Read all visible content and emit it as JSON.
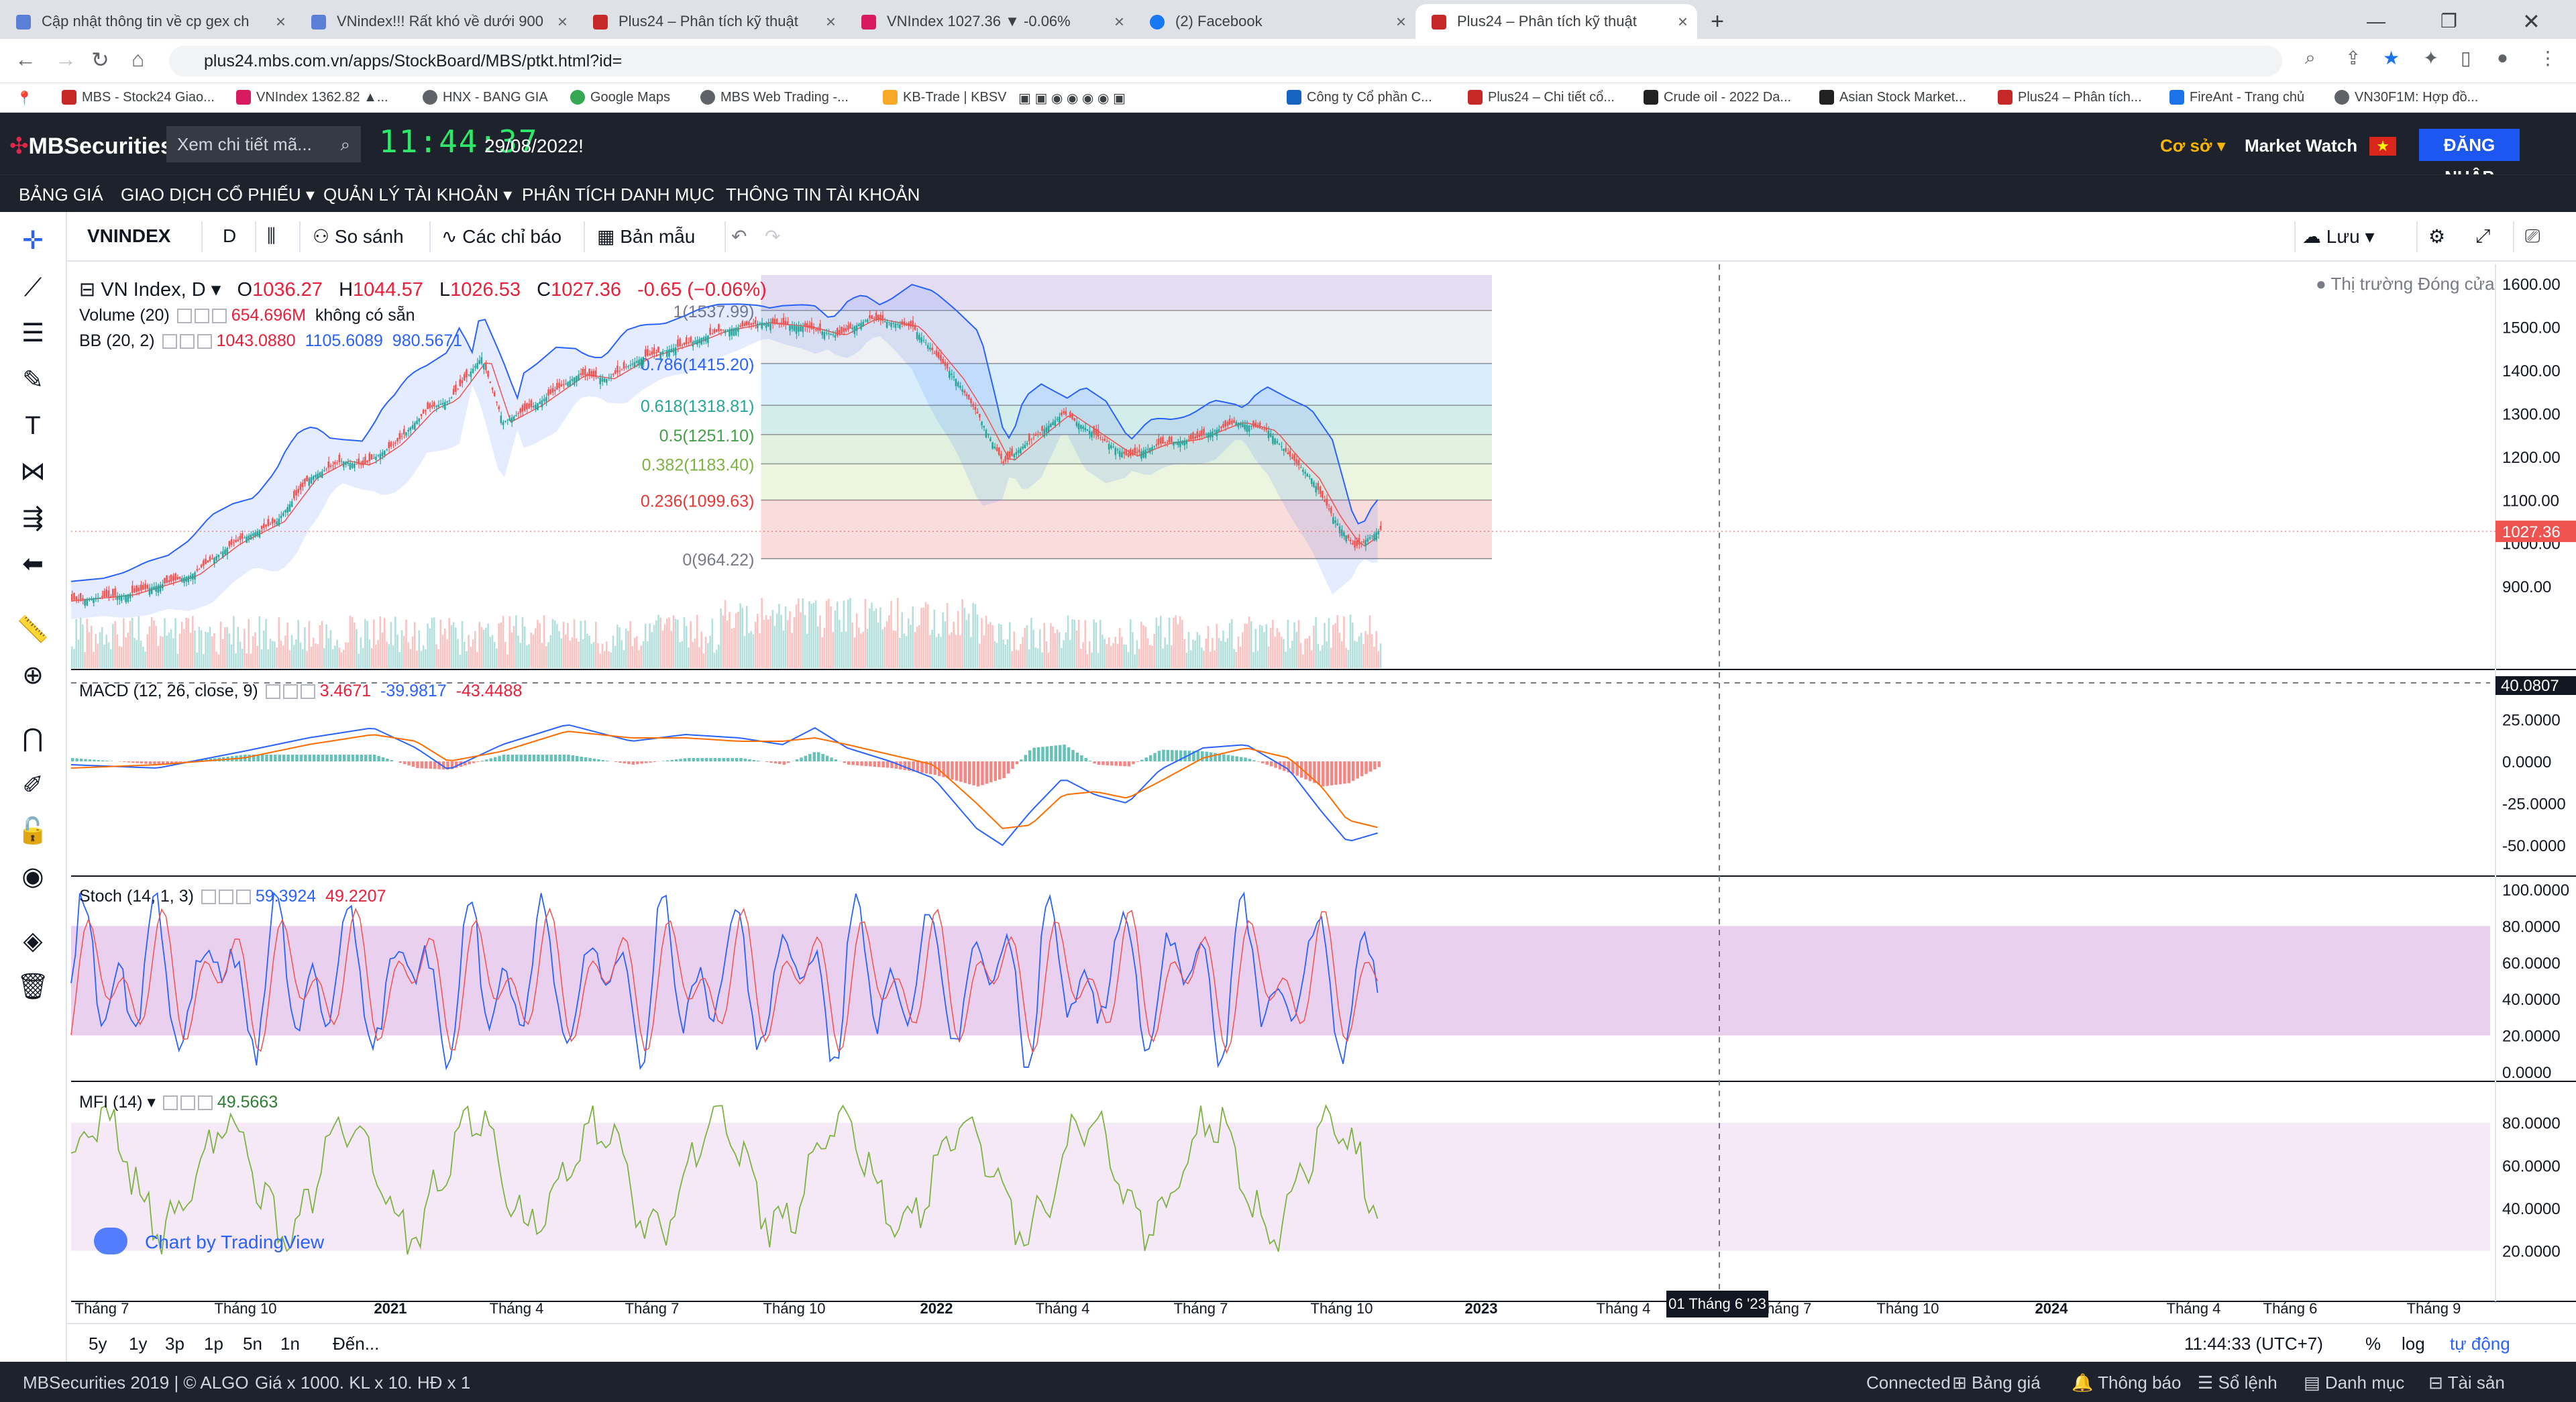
{
  "browser": {
    "tabs": [
      {
        "label": "Cập nhật thông tin về cp gex ch"
      },
      {
        "label": "VNindex!!! Rất khó về dưới 900"
      },
      {
        "label": "Plus24 – Phân tích kỹ thuật"
      },
      {
        "label": "VNIndex 1027.36 ▼ -0.06%"
      },
      {
        "label": "(2) Facebook"
      },
      {
        "label": "Plus24 – Phân tích kỹ thuật"
      }
    ],
    "url": "plus24.mbs.com.vn/apps/StockBoard/MBS/ptkt.html?id=",
    "bookmarks": [
      "MBS - Stock24 Giao...",
      "VNIndex 1362.82 ▲...",
      "HNX - BANG GIA",
      "Google Maps",
      "MBS Web Trading -...",
      "KB-Trade | KBSV",
      "Công ty Cổ phần C...",
      "Plus24 – Chi tiết cổ...",
      "Crude oil - 2022 Da...",
      "Asian Stock Market...",
      "Plus24 – Phân tích...",
      "FireAnt - Trang chủ",
      "VN30F1M: Hợp đồ..."
    ]
  },
  "header": {
    "logo": "MBSecurities",
    "search_placeholder": "Xem chi tiết mã...",
    "clock": "11:44:37",
    "date": "29/08/2022!",
    "market": "Cơ sở",
    "market_watch": "Market Watch",
    "login": "ĐĂNG NHẬP"
  },
  "menu": [
    "BẢNG GIÁ",
    "GIAO DỊCH CỔ PHIẾU",
    "QUẢN LÝ TÀI KHOẢN",
    "PHÂN TÍCH DANH MỤC",
    "THÔNG TIN TÀI KHOẢN"
  ],
  "toolbar": {
    "symbol": "VNINDEX",
    "interval": "D",
    "compare": "So sánh",
    "indicators": "Các chỉ báo",
    "templates": "Bản mẫu",
    "save": "Lưu"
  },
  "legend": {
    "title": "VN Index, D",
    "o_label": "O",
    "o": "1036.27",
    "h_label": "H",
    "h": "1044.57",
    "l_label": "L",
    "l": "1026.53",
    "c_label": "C",
    "c": "1027.36",
    "chg": "-0.65 (−0.06%)",
    "volume_label": "Volume (20)",
    "volume_value": "654.696M",
    "volume_extra": "không có sẵn",
    "bb_label": "BB (20, 2)",
    "bb_values": [
      "1043.0880",
      "1105.6089",
      "980.5671"
    ],
    "macd_label": "MACD (12, 26, close, 9)",
    "macd_values": [
      "3.4671",
      "-39.9817",
      "-43.4488"
    ],
    "stoch_label": "Stoch (14, 1, 3)",
    "stoch_values": [
      "59.3924",
      "49.2207"
    ],
    "mfi_label": "MFI (14)",
    "mfi_value": "49.5663",
    "market_status": "Thị trường Đóng cửa"
  },
  "watermark": "Chart by TradingView",
  "cursor_date": "01 Tháng 6 '23",
  "colors": {
    "up": "#26a69a",
    "down": "#ef5350",
    "bb": "#2962ff",
    "macd": "#2962ff",
    "signal": "#ff6d00",
    "stoch_k": "#2962ff",
    "stoch_d": "#ef5350",
    "mfi": "#7cb342"
  },
  "bottom": {
    "ranges": [
      "5y",
      "1y",
      "3p",
      "1p",
      "5n",
      "1n"
    ],
    "goto": "Đến...",
    "time": "11:44:33 (UTC+7)",
    "percent": "%",
    "log": "log",
    "auto": "tự động"
  },
  "status": {
    "left": "MBSecurities 2019 | © ALGO",
    "units": "Giá x 1000. KL x 10. HĐ x 1",
    "connected": "Connected",
    "items": [
      "Bảng giá",
      "Thông báo",
      "Sổ lệnh",
      "Danh mục",
      "Tài sản"
    ]
  },
  "chart_data": {
    "type": "candlestick",
    "title": "VN Index, D",
    "price_axis": {
      "ticks": [
        900,
        1000,
        1100,
        1200,
        1300,
        1400,
        1500,
        1600
      ],
      "range": [
        860,
        1620
      ],
      "last": "1027.36"
    },
    "time_axis": [
      "Tháng 7",
      "Tháng 10",
      "2021",
      "Tháng 4",
      "Tháng 7",
      "Tháng 10",
      "2022",
      "Tháng 4",
      "Tháng 7",
      "Tháng 10",
      "2023",
      "Tháng 4",
      "Tháng 7",
      "Tháng 10",
      "2024",
      "Tháng 4",
      "Tháng 6",
      "Tháng 9"
    ],
    "price_path": [
      [
        0,
        868
      ],
      [
        25,
        880
      ],
      [
        55,
        925
      ],
      [
        75,
        1000
      ],
      [
        95,
        1050
      ],
      [
        110,
        1150
      ],
      [
        125,
        1190
      ],
      [
        135,
        1180
      ],
      [
        150,
        1230
      ],
      [
        165,
        1310
      ],
      [
        175,
        1330
      ],
      [
        190,
        1430
      ],
      [
        200,
        1280
      ],
      [
        215,
        1320
      ],
      [
        235,
        1390
      ],
      [
        248,
        1380
      ],
      [
        265,
        1430
      ],
      [
        285,
        1460
      ],
      [
        300,
        1490
      ],
      [
        320,
        1510
      ],
      [
        340,
        1500
      ],
      [
        355,
        1480
      ],
      [
        370,
        1520
      ],
      [
        390,
        1500
      ],
      [
        400,
        1440
      ],
      [
        410,
        1380
      ],
      [
        420,
        1300
      ],
      [
        432,
        1185
      ],
      [
        445,
        1240
      ],
      [
        460,
        1300
      ],
      [
        475,
        1250
      ],
      [
        490,
        1200
      ],
      [
        505,
        1230
      ],
      [
        520,
        1240
      ],
      [
        540,
        1280
      ],
      [
        555,
        1260
      ],
      [
        565,
        1200
      ],
      [
        575,
        1150
      ],
      [
        585,
        1060
      ],
      [
        595,
        990
      ],
      [
        608,
        1035
      ]
    ],
    "fibonacci": [
      {
        "label": "1(1537.99)",
        "v": 1537.99
      },
      {
        "label": "0.786(1415.20)",
        "v": 1415.2
      },
      {
        "label": "0.618(1318.81)",
        "v": 1318.81
      },
      {
        "label": "0.5(1251.10)",
        "v": 1251.1
      },
      {
        "label": "0.382(1183.40)",
        "v": 1183.4
      },
      {
        "label": "0.236(1099.63)",
        "v": 1099.63
      },
      {
        "label": "0(964.22)",
        "v": 964.22
      }
    ],
    "macd_axis": {
      "ticks": [
        25,
        0,
        -25,
        -50
      ],
      "range": [
        -62,
        38
      ],
      "last": "40.0807"
    },
    "macd_path": [
      [
        0,
        -2
      ],
      [
        40,
        -4
      ],
      [
        80,
        6
      ],
      [
        110,
        14
      ],
      [
        140,
        20
      ],
      [
        160,
        8
      ],
      [
        175,
        -5
      ],
      [
        200,
        10
      ],
      [
        230,
        22
      ],
      [
        260,
        12
      ],
      [
        285,
        16
      ],
      [
        310,
        14
      ],
      [
        330,
        10
      ],
      [
        345,
        20
      ],
      [
        360,
        8
      ],
      [
        380,
        0
      ],
      [
        400,
        -10
      ],
      [
        420,
        -40
      ],
      [
        432,
        -50
      ],
      [
        445,
        -30
      ],
      [
        460,
        -10
      ],
      [
        475,
        -20
      ],
      [
        490,
        -25
      ],
      [
        505,
        -5
      ],
      [
        525,
        8
      ],
      [
        545,
        10
      ],
      [
        565,
        -5
      ],
      [
        580,
        -30
      ],
      [
        592,
        -48
      ],
      [
        608,
        -42
      ]
    ],
    "signal_path": [
      [
        0,
        -4
      ],
      [
        40,
        -2
      ],
      [
        80,
        2
      ],
      [
        110,
        10
      ],
      [
        140,
        16
      ],
      [
        160,
        12
      ],
      [
        175,
        0
      ],
      [
        200,
        6
      ],
      [
        230,
        18
      ],
      [
        260,
        14
      ],
      [
        285,
        14
      ],
      [
        310,
        12
      ],
      [
        330,
        12
      ],
      [
        345,
        14
      ],
      [
        360,
        10
      ],
      [
        380,
        4
      ],
      [
        400,
        -2
      ],
      [
        420,
        -25
      ],
      [
        432,
        -40
      ],
      [
        445,
        -38
      ],
      [
        460,
        -20
      ],
      [
        475,
        -18
      ],
      [
        490,
        -22
      ],
      [
        505,
        -12
      ],
      [
        525,
        2
      ],
      [
        545,
        8
      ],
      [
        565,
        2
      ],
      [
        580,
        -15
      ],
      [
        592,
        -35
      ],
      [
        608,
        -40
      ]
    ],
    "stoch_axis": {
      "ticks": [
        100,
        80,
        60,
        40,
        20,
        0
      ],
      "band": [
        20,
        80
      ]
    },
    "mfi_axis": {
      "ticks": [
        80,
        60,
        40,
        20
      ],
      "band": [
        20,
        80
      ]
    },
    "bars": 608
  }
}
